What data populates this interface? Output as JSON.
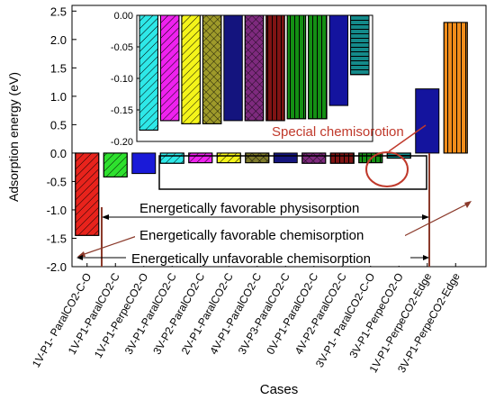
{
  "chart_data": [
    {
      "type": "bar",
      "xlabel": "Cases",
      "ylabel": "Adsorption energy (eV)",
      "ylim": [
        -2.0,
        2.6
      ],
      "yticks": [
        -2.0,
        -1.5,
        -1.0,
        -0.5,
        0.0,
        0.5,
        1.0,
        1.5,
        2.0,
        2.5
      ],
      "ytick_labels": [
        "-2.0",
        "-1.5",
        "-1.0",
        "-0.5",
        "0.0",
        "0.5",
        "1.0",
        "1.5",
        "2.0",
        "2.5"
      ],
      "categories": [
        "1V-P1- ParalCO2-C-O",
        "1V-P1-ParalCO2-C",
        "1V-P1-PerpeCO2-O",
        "3V-P1-ParalCO2-C",
        "3V-P2-ParalCO2-C",
        "2V-P1-ParalCO2-C",
        "4V-P1-ParalCO2-C",
        "3V-P3-ParalCO2-C",
        "0V-P1-ParalCO2-C",
        "4V-P2-ParalCO2-C",
        "3V-P1- ParalCO2-C-O",
        "3V-P1-PerpeCO2-O",
        "1V-P1-PerpeCO2-Edge",
        "3V-P1-PerpeCO2-Edge"
      ],
      "values": [
        -1.45,
        -0.42,
        -0.36,
        -0.18,
        -0.17,
        -0.17,
        -0.17,
        -0.17,
        -0.18,
        -0.18,
        -0.17,
        -0.09,
        1.13,
        2.3
      ],
      "colors": [
        "#e8231c",
        "#2ee02e",
        "#1a1ad8",
        "#2ee8e8",
        "#ee22ee",
        "#f4f41a",
        "#7e7a2a",
        "#14147e",
        "#7e2a7e",
        "#7e1414",
        "#149014",
        "#148a8a",
        "#14149e",
        "#f08c1a"
      ],
      "patterns": [
        "hatch-back",
        "hatch-back",
        "none",
        "hatch-back",
        "hatch-back",
        "hatch-back",
        "crosshatch",
        "none",
        "crosshatch",
        "vertical",
        "vertical",
        "horizontal",
        "none",
        "vertical"
      ],
      "annotations": [
        "Special chemisorotion",
        "Energetically favorable physisorption",
        "Energetically favorable chemisorption",
        "Energetically unfavorable chemisorption"
      ]
    },
    {
      "type": "bar",
      "inset": true,
      "ylim": [
        -0.2,
        0.0
      ],
      "yticks": [
        0.0,
        -0.05,
        -0.1,
        -0.15,
        -0.2
      ],
      "ytick_labels": [
        "0.00",
        "-0.05",
        "-0.10",
        "-0.15",
        "-0.20"
      ],
      "values": [
        -0.182,
        -0.167,
        -0.172,
        -0.172,
        -0.167,
        -0.167,
        -0.167,
        -0.164,
        -0.164,
        -0.143,
        -0.094
      ],
      "colors": [
        "#2ee8e8",
        "#ee22ee",
        "#f4f41a",
        "#9e9a2a",
        "#14147e",
        "#7e2a7e",
        "#7e1414",
        "#149014",
        "#149014",
        "#14149e",
        "#148a8a"
      ],
      "patterns": [
        "hatch-back",
        "hatch-back",
        "hatch-back",
        "crosshatch",
        "none",
        "crosshatch",
        "vertical",
        "vertical",
        "vertical",
        "none",
        "horizontal"
      ]
    }
  ]
}
